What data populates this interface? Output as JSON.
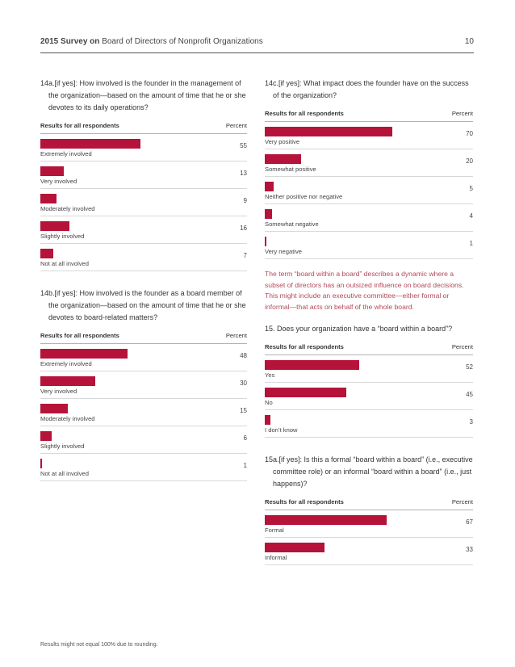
{
  "header": {
    "title_bold": "2015 Survey on",
    "title_rest": " Board of Directors of Nonprofit Organizations",
    "page_number": "10"
  },
  "table_header": {
    "left": "Results for all respondents",
    "right": "Percent"
  },
  "sections": {
    "q14a": {
      "number": "14a.",
      "text": "[if yes]: How involved is the founder in the management of the organization—based on the amount of time that he or she devotes to its daily operations?",
      "rows": [
        {
          "label": "Extremely involved",
          "value": 55
        },
        {
          "label": "Very involved",
          "value": 13
        },
        {
          "label": "Moderately involved",
          "value": 9
        },
        {
          "label": "Slightly involved",
          "value": 16
        },
        {
          "label": "Not at all involved",
          "value": 7
        }
      ]
    },
    "q14b": {
      "number": "14b.",
      "text": "[if yes]: How involved is the founder as a board member of the organization—based on the amount of time that he or she devotes to board-related matters?",
      "rows": [
        {
          "label": "Extremely involved",
          "value": 48
        },
        {
          "label": "Very involved",
          "value": 30
        },
        {
          "label": "Moderately involved",
          "value": 15
        },
        {
          "label": "Slightly involved",
          "value": 6
        },
        {
          "label": "Not at all involved",
          "value": 1
        }
      ]
    },
    "q14c": {
      "number": "14c.",
      "text": "[if yes]: What impact does the founder have on the success of the organization?",
      "rows": [
        {
          "label": "Very positive",
          "value": 70
        },
        {
          "label": "Somewhat positive",
          "value": 20
        },
        {
          "label": "Neither positive nor negative",
          "value": 5
        },
        {
          "label": "Somewhat negative",
          "value": 4
        },
        {
          "label": "Very negative",
          "value": 1
        }
      ]
    },
    "intro": "The term “board within a board” describes a dynamic where a subset of directors has an outsized influence on board decisions. This might include an executive committee—either formal or informal—that acts on behalf of the whole board.",
    "q15": {
      "number": "15.",
      "text": "Does your organization have a “board within a board”?",
      "rows": [
        {
          "label": "Yes",
          "value": 52
        },
        {
          "label": "No",
          "value": 45
        },
        {
          "label": "I don’t know",
          "value": 3
        }
      ]
    },
    "q15a": {
      "number": "15a.",
      "text": "[if yes]: Is this a formal “board within a board” (i.e., executive committee role) or an informal “board within a board” (i.e., just happens)?",
      "rows": [
        {
          "label": "Formal",
          "value": 67
        },
        {
          "label": "Informal",
          "value": 33
        }
      ]
    }
  },
  "footnote": "Results might not equal 100% due to rounding.",
  "colors": {
    "bar": "#b5133a",
    "intro_text": "#b3495a"
  }
}
